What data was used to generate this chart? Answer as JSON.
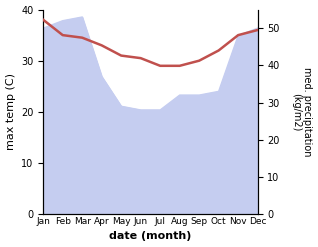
{
  "months": [
    "Jan",
    "Feb",
    "Mar",
    "Apr",
    "May",
    "Jun",
    "Jul",
    "Aug",
    "Sep",
    "Oct",
    "Nov",
    "Dec"
  ],
  "month_x": [
    0,
    1,
    2,
    3,
    4,
    5,
    6,
    7,
    8,
    9,
    10,
    11
  ],
  "temp": [
    38,
    35,
    34.5,
    33,
    31,
    30.5,
    29,
    29,
    30,
    32,
    35,
    36
  ],
  "precip": [
    50,
    52,
    53,
    37,
    29,
    28,
    28,
    32,
    32,
    33,
    48,
    50
  ],
  "temp_color": "#c0504d",
  "precip_fill_color": "#c5cdf0",
  "xlabel": "date (month)",
  "ylabel_left": "max temp (C)",
  "ylabel_right": "med. precipitation\n(kg/m2)",
  "ylim_left": [
    0,
    40
  ],
  "ylim_right": [
    0,
    55
  ],
  "yticks_left": [
    0,
    10,
    20,
    30,
    40
  ],
  "yticks_right": [
    0,
    10,
    20,
    30,
    40,
    50
  ],
  "background_color": "#ffffff"
}
